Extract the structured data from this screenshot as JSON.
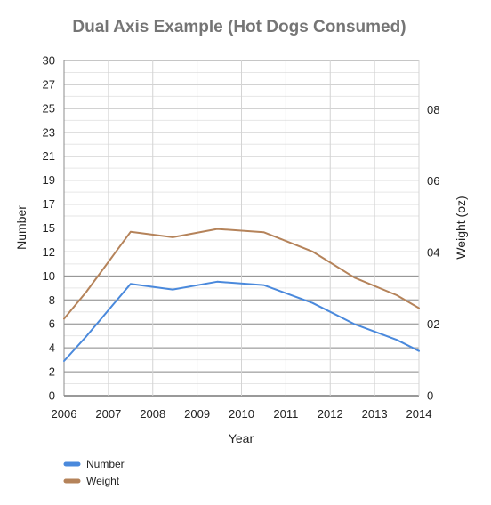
{
  "chart_data": {
    "type": "line",
    "title": "Dual Axis Example (Hot Dogs Consumed)",
    "xlabel": "Year",
    "ylabel_left": "Number",
    "ylabel_right": "Weight (oz)",
    "x_range": [
      2006,
      2014
    ],
    "x_ticks": [
      "2006",
      "2007",
      "2008",
      "2009",
      "2010",
      "2011",
      "2012",
      "2013",
      "2014"
    ],
    "y_left_range": [
      0,
      30
    ],
    "y_left_ticks": [
      "0",
      "2",
      "4",
      "6",
      "8",
      "10",
      "12",
      "15",
      "17",
      "19",
      "21",
      "23",
      "25",
      "27",
      "30"
    ],
    "y_right_range": [
      0,
      0.9375
    ],
    "y_right_ticks": [
      {
        "label": "0",
        "value": 0
      },
      {
        "label": "02",
        "value": 0.2
      },
      {
        "label": "04",
        "value": 0.4
      },
      {
        "label": "06",
        "value": 0.6
      },
      {
        "label": "08",
        "value": 0.8
      }
    ],
    "grid": true,
    "legend_position": "bottom-left",
    "series": [
      {
        "name": "Number",
        "axis": "left",
        "color": "#4a89dc",
        "x": [
          2006,
          2006.5,
          2007.5,
          2008.45,
          2009.45,
          2010.5,
          2011.6,
          2012.55,
          2013.5,
          2014
        ],
        "values": [
          3.1,
          5.3,
          10.0,
          9.5,
          10.2,
          9.9,
          8.3,
          6.4,
          5.0,
          4.0
        ]
      },
      {
        "name": "Weight",
        "axis": "right",
        "color": "#b5835a",
        "x": [
          2006,
          2006.5,
          2007.5,
          2008.45,
          2009.45,
          2010.5,
          2011.6,
          2012.55,
          2013.5,
          2014
        ],
        "values": [
          0.215,
          0.29,
          0.458,
          0.443,
          0.466,
          0.457,
          0.403,
          0.33,
          0.281,
          0.245
        ]
      }
    ]
  }
}
